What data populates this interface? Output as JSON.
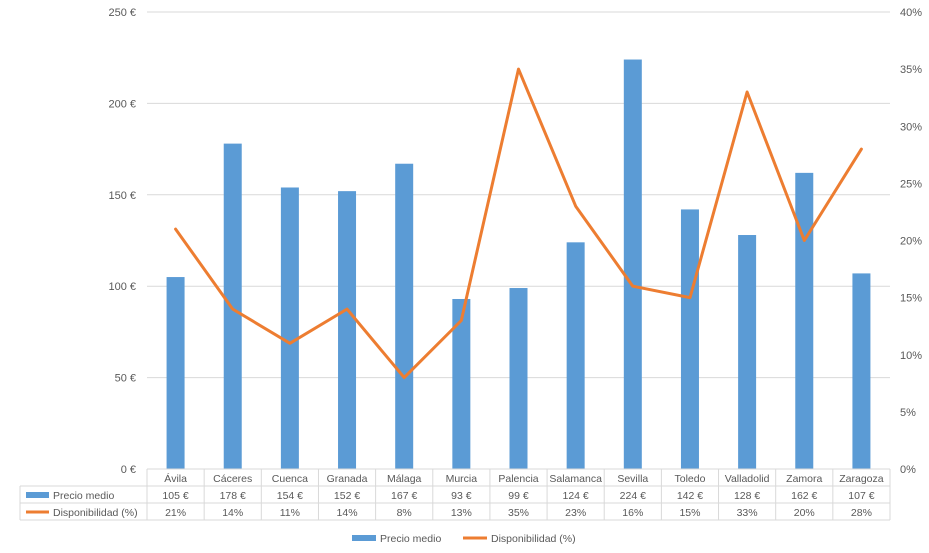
{
  "chart_data": {
    "type": "bar",
    "categories": [
      "Ávila",
      "Cáceres",
      "Cuenca",
      "Granada",
      "Málaga",
      "Murcia",
      "Palencia",
      "Salamanca",
      "Sevilla",
      "Toledo",
      "Valladolid",
      "Zamora",
      "Zaragoza"
    ],
    "series": [
      {
        "name": "Precio medio",
        "type": "bar",
        "axis": "left",
        "color": "#5b9bd5",
        "values": [
          105,
          178,
          154,
          152,
          167,
          93,
          99,
          124,
          224,
          142,
          128,
          162,
          107
        ],
        "labels": [
          "105 €",
          "178 €",
          "154 €",
          "152 €",
          "167 €",
          "93 €",
          "99 €",
          "124 €",
          "224 €",
          "142 €",
          "128 €",
          "162 €",
          "107 €"
        ]
      },
      {
        "name": "Disponibilidad (%)",
        "type": "line",
        "axis": "right",
        "color": "#ed7d31",
        "values": [
          21,
          14,
          11,
          14,
          8,
          13,
          35,
          23,
          16,
          15,
          33,
          20,
          28
        ],
        "labels": [
          "21%",
          "14%",
          "11%",
          "14%",
          "8%",
          "13%",
          "35%",
          "23%",
          "16%",
          "15%",
          "33%",
          "20%",
          "28%"
        ]
      }
    ],
    "y_left": {
      "range": [
        0,
        250
      ],
      "ticks": [
        0,
        50,
        100,
        150,
        200,
        250
      ],
      "tick_labels": [
        "0 €",
        "50 €",
        "100 €",
        "150 €",
        "200 €",
        "250 €"
      ]
    },
    "y_right": {
      "range": [
        0,
        40
      ],
      "ticks": [
        0,
        5,
        10,
        15,
        20,
        25,
        30,
        35,
        40
      ],
      "tick_labels": [
        "0%",
        "5%",
        "10%",
        "15%",
        "20%",
        "25%",
        "30%",
        "35%",
        "40%"
      ]
    },
    "grid": true,
    "data_table": true,
    "legend_position": "bottom"
  }
}
